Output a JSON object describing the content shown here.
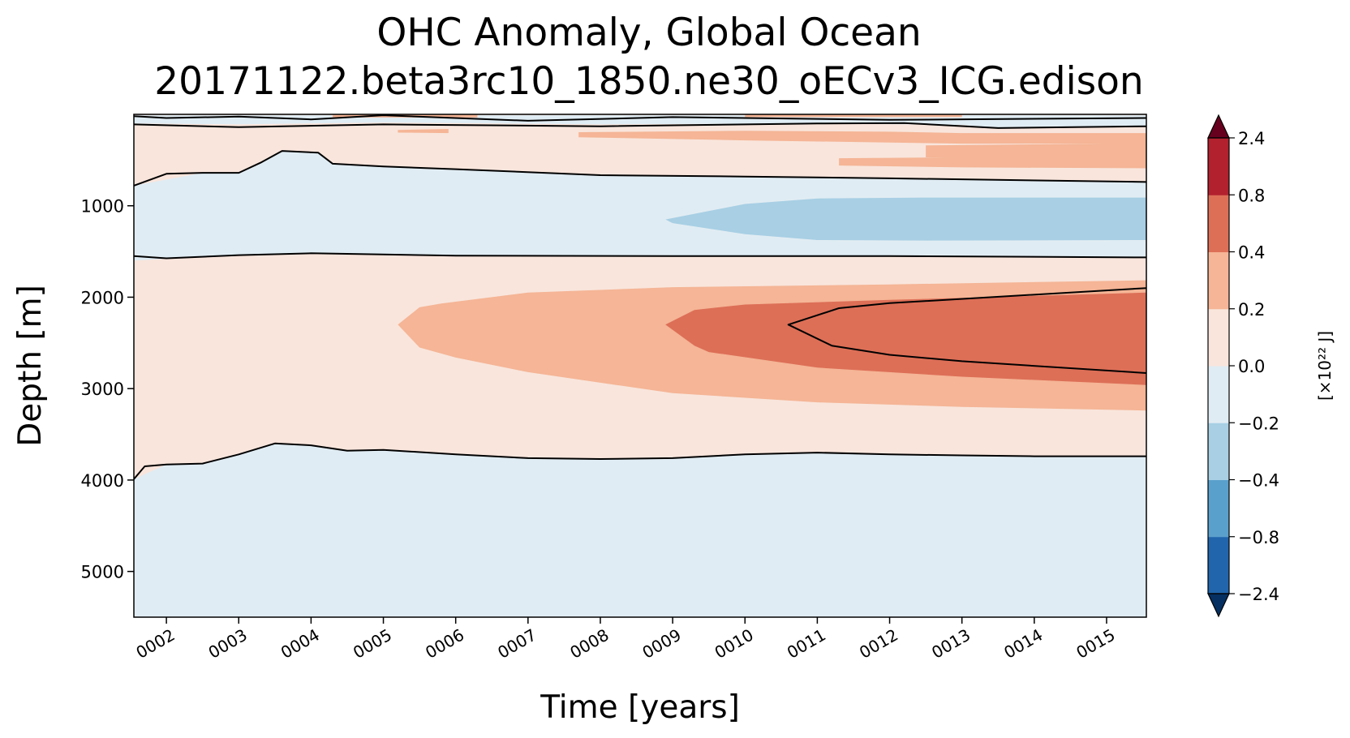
{
  "chart_data": {
    "type": "contourf",
    "title": "OHC Anomaly, Global Ocean",
    "subtitle": "20171122.beta3rc10_1850.ne30_oECv3_ICG.edison",
    "xlabel": "Time [years]",
    "ylabel": "Depth [m]",
    "xlim": [
      1.55,
      15.55
    ],
    "ylim": [
      5500,
      0
    ],
    "x_ticks": [
      2,
      3,
      4,
      5,
      6,
      7,
      8,
      9,
      10,
      11,
      12,
      13,
      14,
      15
    ],
    "x_tick_labels": [
      "0002",
      "0003",
      "0004",
      "0005",
      "0006",
      "0007",
      "0008",
      "0009",
      "0010",
      "0011",
      "0012",
      "0013",
      "0014",
      "0015"
    ],
    "y_ticks": [
      1000,
      2000,
      3000,
      4000,
      5000
    ],
    "y_tick_labels": [
      "1000",
      "2000",
      "3000",
      "4000",
      "5000"
    ],
    "colorbar": {
      "label": "[×10²² J]",
      "levels": [
        -2.4,
        -0.8,
        -0.4,
        -0.2,
        0.0,
        0.2,
        0.4,
        0.8,
        2.4
      ],
      "tick_labels": [
        "−2.4",
        "−0.8",
        "−0.4",
        "−0.2",
        "0.0",
        "0.2",
        "0.4",
        "0.8",
        "2.4"
      ],
      "colors": [
        "#2166ac",
        "#5aa0cc",
        "#a8cfe4",
        "#e0ecf3",
        "#f9e5dc",
        "#f5b596",
        "#dd6f57",
        "#b2212e"
      ],
      "under_color": "#053061",
      "over_color": "#67001f",
      "extend": "both"
    },
    "regions": [
      {
        "level": "0.0 to 0.2",
        "color": "#f9e5dc",
        "polygon": [
          [
            1.55,
            10
          ],
          [
            15.55,
            10
          ],
          [
            15.55,
            3700
          ],
          [
            1.55,
            3700
          ]
        ]
      },
      {
        "level": "-0.2 to 0.0",
        "color": "#e0ecf3",
        "polygon": [
          [
            1.55,
            10
          ],
          [
            15.55,
            10
          ],
          [
            15.55,
            130
          ],
          [
            13.5,
            150
          ],
          [
            13,
            115
          ],
          [
            11,
            100
          ],
          [
            8,
            110
          ],
          [
            5,
            90
          ],
          [
            3,
            110
          ],
          [
            1.55,
            100
          ]
        ]
      },
      {
        "level": "-0.2 to 0.0",
        "color": "#e0ecf3",
        "polygon": [
          [
            1.55,
            780
          ],
          [
            2.5,
            640
          ],
          [
            3,
            640
          ],
          [
            3.3,
            530
          ],
          [
            3.6,
            400
          ],
          [
            4.1,
            420
          ],
          [
            4.3,
            540
          ],
          [
            5,
            570
          ],
          [
            8,
            665
          ],
          [
            12,
            700
          ],
          [
            15.55,
            740
          ],
          [
            15.55,
            1565
          ],
          [
            12,
            1555
          ],
          [
            9,
            1550
          ],
          [
            6,
            1545
          ],
          [
            4,
            1525
          ],
          [
            3,
            1540
          ],
          [
            2,
            1580
          ],
          [
            1.55,
            1600
          ]
        ]
      },
      {
        "level": "-0.4 to -0.2",
        "color": "#a8cfe4",
        "polygon": [
          [
            8.9,
            1150
          ],
          [
            10,
            980
          ],
          [
            11,
            920
          ],
          [
            12.5,
            910
          ],
          [
            15.55,
            910
          ],
          [
            15.55,
            1375
          ],
          [
            12.5,
            1380
          ],
          [
            11,
            1375
          ],
          [
            10,
            1310
          ],
          [
            9,
            1190
          ]
        ]
      },
      {
        "level": "-0.2 to 0.0",
        "color": "#e0ecf3",
        "polygon": [
          [
            1.55,
            3990
          ],
          [
            2,
            3830
          ],
          [
            2.5,
            3820
          ],
          [
            3,
            3720
          ],
          [
            3.5,
            3600
          ],
          [
            4,
            3620
          ],
          [
            4.5,
            3680
          ],
          [
            5,
            3670
          ],
          [
            6,
            3720
          ],
          [
            7,
            3760
          ],
          [
            8,
            3770
          ],
          [
            9,
            3760
          ],
          [
            10,
            3720
          ],
          [
            11,
            3700
          ],
          [
            12,
            3720
          ],
          [
            14,
            3740
          ],
          [
            15.55,
            3740
          ],
          [
            15.55,
            5500
          ],
          [
            1.55,
            5500
          ]
        ]
      },
      {
        "level": "0.2 to 0.4",
        "color": "#f5b596",
        "polygon": [
          [
            5.2,
            2300
          ],
          [
            5.5,
            2110
          ],
          [
            5.8,
            2070
          ],
          [
            7,
            1950
          ],
          [
            9,
            1890
          ],
          [
            12,
            1860
          ],
          [
            15.55,
            1815
          ],
          [
            15.55,
            3240
          ],
          [
            13,
            3200
          ],
          [
            11,
            3150
          ],
          [
            9,
            3050
          ],
          [
            7,
            2820
          ],
          [
            6,
            2660
          ],
          [
            5.5,
            2550
          ]
        ]
      },
      {
        "level": "0.4 to 0.8",
        "color": "#dd6f57",
        "polygon": [
          [
            8.9,
            2300
          ],
          [
            9.3,
            2140
          ],
          [
            10,
            2080
          ],
          [
            12,
            2030
          ],
          [
            15.55,
            1950
          ],
          [
            15.55,
            2960
          ],
          [
            13,
            2870
          ],
          [
            11,
            2770
          ],
          [
            9.5,
            2600
          ],
          [
            9.3,
            2530
          ]
        ]
      },
      {
        "level": "0.2 to 0.4",
        "color": "#f5b596",
        "polygon": [
          [
            5.2,
            170
          ],
          [
            5.9,
            160
          ],
          [
            5.9,
            205
          ],
          [
            5.2,
            200
          ]
        ]
      },
      {
        "level": "0.2 to 0.4",
        "color": "#f5b596",
        "polygon": [
          [
            7.7,
            195
          ],
          [
            10,
            180
          ],
          [
            12,
            190
          ],
          [
            13,
            205
          ],
          [
            15.55,
            205
          ],
          [
            15.55,
            320
          ],
          [
            13,
            320
          ],
          [
            10,
            285
          ],
          [
            7.7,
            250
          ]
        ]
      },
      {
        "level": "0.2 to 0.4",
        "color": "#f5b596",
        "polygon": [
          [
            12.5,
            340
          ],
          [
            15.55,
            315
          ],
          [
            15.55,
            500
          ],
          [
            12.5,
            470
          ]
        ]
      },
      {
        "level": "0.2 to 0.4",
        "color": "#f5b596",
        "polygon": [
          [
            11.3,
            480
          ],
          [
            13,
            470
          ],
          [
            15.55,
            460
          ],
          [
            15.55,
            590
          ],
          [
            13,
            580
          ],
          [
            11.3,
            560
          ]
        ]
      },
      {
        "level": "0.2 to 0.4",
        "color": "#f5b596",
        "polygon": [
          [
            4.3,
            0
          ],
          [
            6.3,
            0
          ],
          [
            6.3,
            35
          ],
          [
            4.3,
            35
          ]
        ]
      },
      {
        "level": "0.2 to 0.4",
        "color": "#f5b596",
        "polygon": [
          [
            10,
            0
          ],
          [
            13,
            0
          ],
          [
            13,
            30
          ],
          [
            10,
            30
          ]
        ]
      }
    ],
    "contour_lines": [
      {
        "level": 0.0,
        "points": [
          [
            1.55,
            20
          ],
          [
            2,
            40
          ],
          [
            3,
            25
          ],
          [
            4,
            55
          ],
          [
            5,
            10
          ],
          [
            7,
            70
          ],
          [
            9,
            30
          ],
          [
            12,
            60
          ],
          [
            15.55,
            40
          ]
        ]
      },
      {
        "level": 0.0,
        "points": [
          [
            1.55,
            110
          ],
          [
            3,
            140
          ],
          [
            5,
            110
          ],
          [
            8,
            130
          ],
          [
            11,
            100
          ],
          [
            12.2,
            95
          ],
          [
            13.5,
            150
          ],
          [
            15.55,
            130
          ]
        ]
      },
      {
        "level": 0.0,
        "points": [
          [
            1.55,
            780
          ],
          [
            2,
            650
          ],
          [
            2.5,
            640
          ],
          [
            3,
            640
          ],
          [
            3.3,
            530
          ],
          [
            3.6,
            400
          ],
          [
            4.1,
            420
          ],
          [
            4.3,
            540
          ],
          [
            5,
            570
          ],
          [
            6,
            600
          ],
          [
            8,
            665
          ],
          [
            10,
            680
          ],
          [
            12,
            700
          ],
          [
            15.55,
            740
          ]
        ]
      },
      {
        "level": 0.0,
        "points": [
          [
            1.55,
            1550
          ],
          [
            2,
            1575
          ],
          [
            3,
            1540
          ],
          [
            4,
            1520
          ],
          [
            6,
            1545
          ],
          [
            9,
            1550
          ],
          [
            12,
            1550
          ],
          [
            15.55,
            1565
          ]
        ]
      },
      {
        "level": 0.8,
        "points": [
          [
            15.55,
            1900
          ],
          [
            12,
            2065
          ],
          [
            11.3,
            2120
          ],
          [
            10.6,
            2300
          ],
          [
            11.2,
            2530
          ],
          [
            12,
            2630
          ],
          [
            13,
            2700
          ],
          [
            15.55,
            2830
          ]
        ]
      },
      {
        "level": 0.0,
        "points": [
          [
            1.55,
            3990
          ],
          [
            1.7,
            3850
          ],
          [
            2,
            3830
          ],
          [
            2.5,
            3820
          ],
          [
            3,
            3720
          ],
          [
            3.5,
            3600
          ],
          [
            4,
            3620
          ],
          [
            4.5,
            3680
          ],
          [
            5,
            3670
          ],
          [
            6,
            3720
          ],
          [
            7,
            3760
          ],
          [
            8,
            3770
          ],
          [
            9,
            3760
          ],
          [
            10,
            3720
          ],
          [
            11,
            3700
          ],
          [
            12,
            3720
          ],
          [
            13,
            3730
          ],
          [
            14,
            3740
          ],
          [
            15.55,
            3740
          ]
        ]
      }
    ]
  }
}
